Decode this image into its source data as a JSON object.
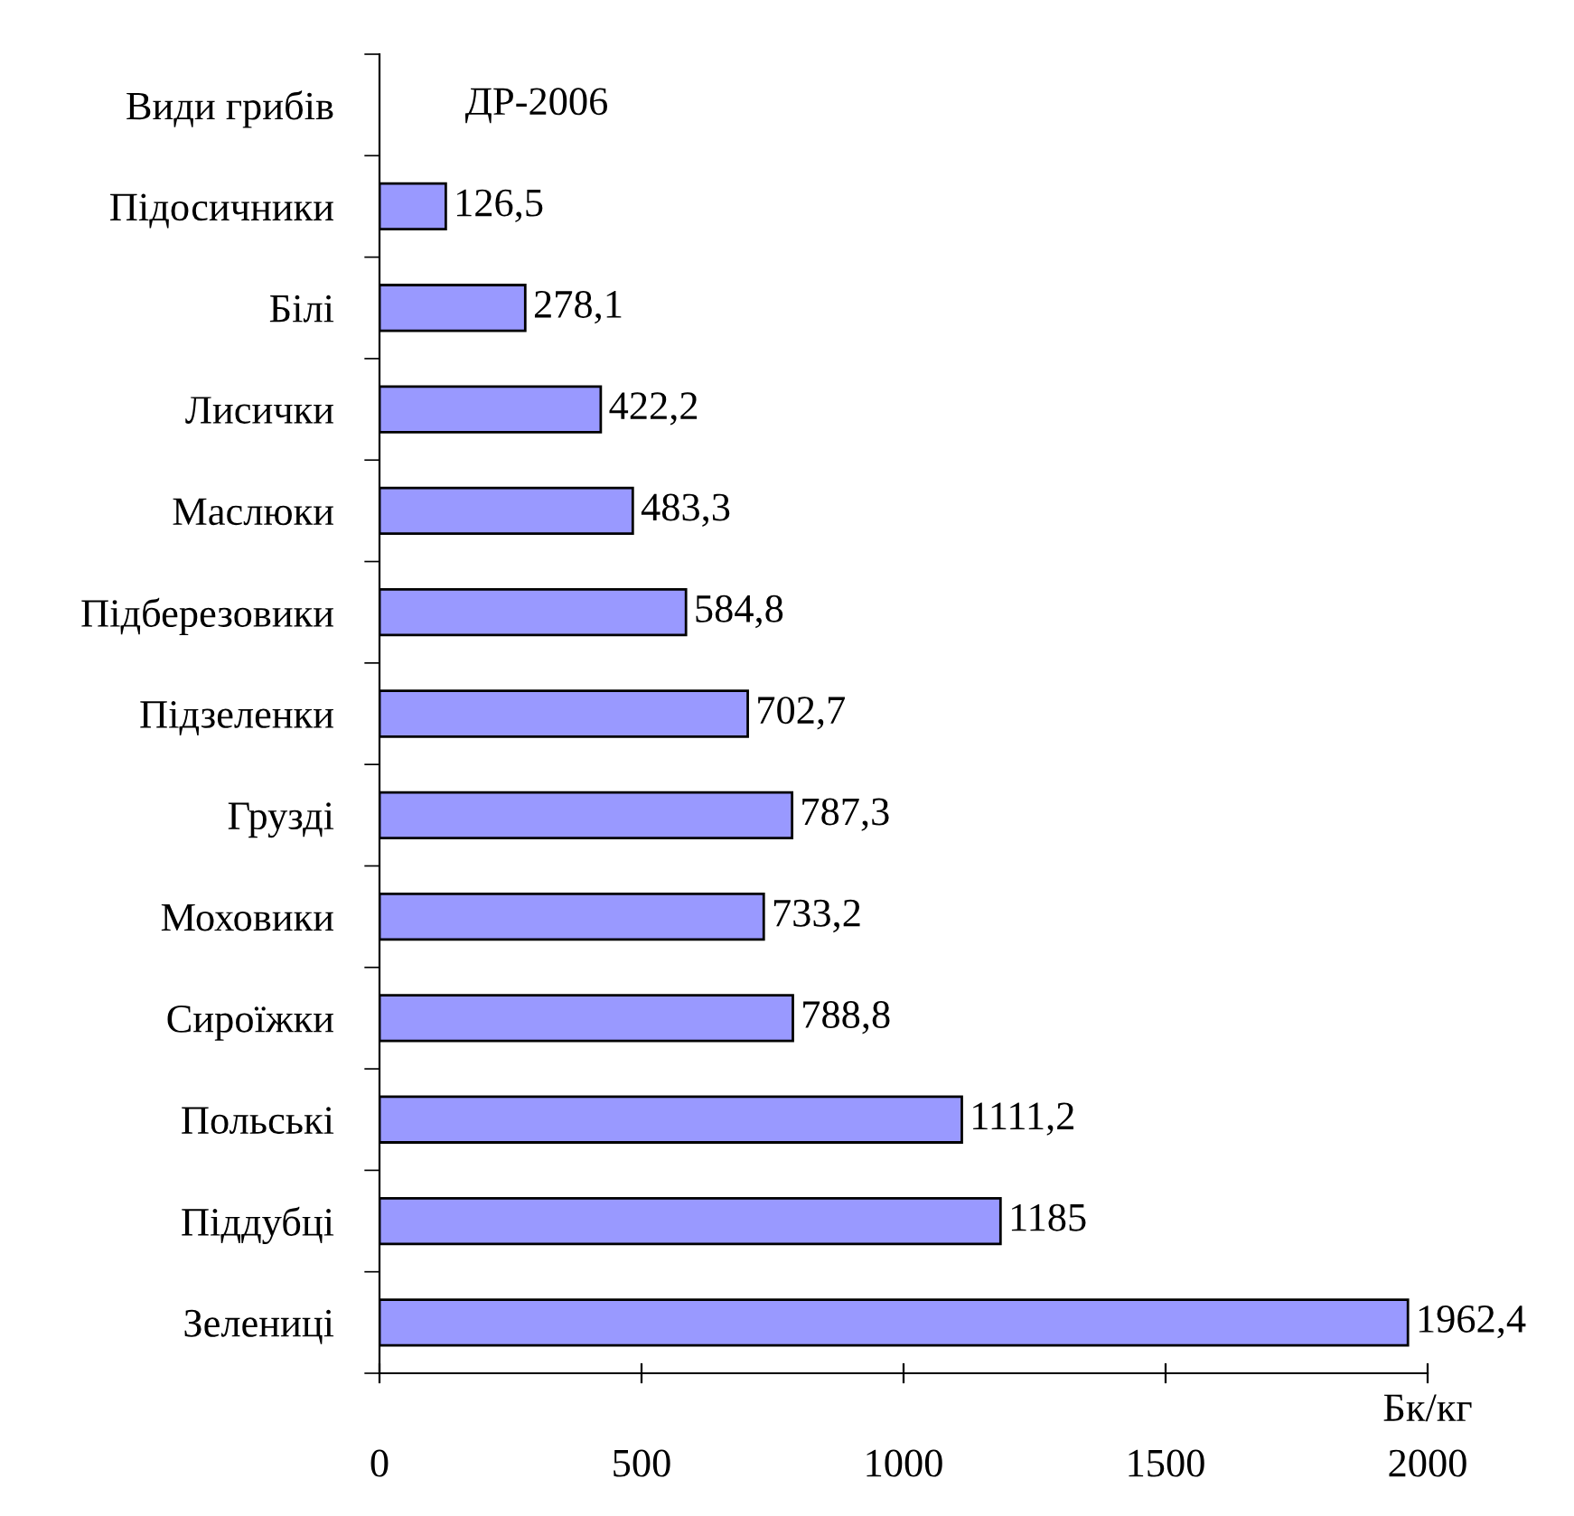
{
  "chart_data": {
    "type": "bar",
    "orientation": "horizontal",
    "categories": [
      "Види грибів",
      "Підосичники",
      "Білі",
      "Лисички",
      "Маслюки",
      "Підберезовики",
      "Підзеленки",
      "Грузді",
      "Моховики",
      "Сироїжки",
      "Польські",
      "Піддубці",
      "Зелениці"
    ],
    "values": [
      null,
      126.5,
      278.1,
      422.2,
      483.3,
      584.8,
      702.7,
      787.3,
      733.2,
      788.8,
      1111.2,
      1185,
      1962.4
    ],
    "value_labels": [
      null,
      "126,5",
      "278,1",
      "422,2",
      "483,3",
      "584,8",
      "702,7",
      "787,3",
      "733,2",
      "788,8",
      "1111,2",
      "1185",
      "1962,4"
    ],
    "color": "#9999ff",
    "xlabel": "Бк/кг",
    "annotations": [
      "ДР-2006"
    ],
    "xlim": [
      0,
      2000
    ],
    "xticks": [
      0,
      500,
      1000,
      1500,
      2000
    ],
    "grid": false,
    "legend": false
  }
}
